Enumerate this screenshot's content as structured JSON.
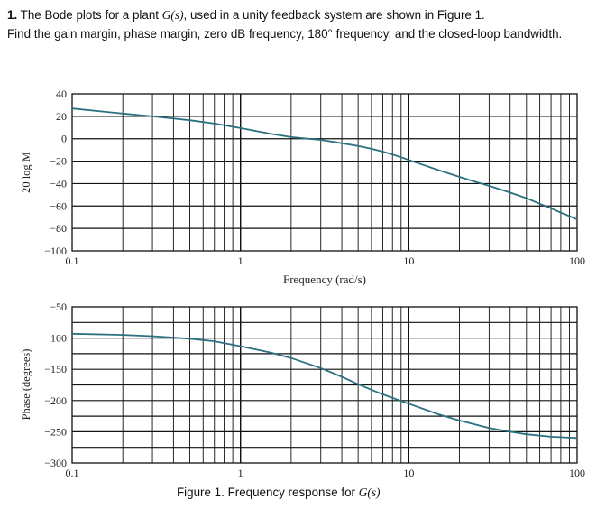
{
  "problem": {
    "number": "1.",
    "line1_before": "The Bode plots for a plant ",
    "plant_symbol": "G",
    "plant_arg": "(s)",
    "line1_after": ", used in a unity feedback system are shown in Figure 1.",
    "line2": "Find the gain margin, phase margin, zero dB frequency, 180° frequency, and the closed-loop bandwidth."
  },
  "caption": {
    "prefix": "Figure 1. Frequency response for ",
    "symbol": "G",
    "arg": "(s)"
  },
  "chart_data": [
    {
      "type": "line",
      "xscale": "log",
      "xlim": [
        0.1,
        100
      ],
      "ylim": [
        -100,
        40
      ],
      "ylabel": "20 log M",
      "xlabel": "Frequency (rad/s)",
      "x_tick_labels": [
        "0.1",
        "1",
        "10",
        "100"
      ],
      "y_tick_labels": [
        "40",
        "20",
        "0",
        "−20",
        "−40",
        "−60",
        "−80",
        "−100"
      ],
      "y_ticks": [
        40,
        20,
        0,
        -20,
        -40,
        -60,
        -80,
        -100
      ],
      "grid": true,
      "series": [
        {
          "color": "#2a7080",
          "x": [
            0.1,
            0.2,
            0.3,
            0.5,
            0.7,
            1,
            1.5,
            2,
            2.5,
            3,
            4,
            5,
            6,
            7,
            8,
            9,
            10,
            12,
            15,
            20,
            25,
            30,
            40,
            50,
            60,
            70,
            80,
            90,
            100
          ],
          "y": [
            27,
            22.5,
            20,
            16.5,
            13.5,
            9.5,
            4.5,
            1.5,
            0,
            -1,
            -4,
            -6.5,
            -9,
            -11.5,
            -14,
            -16.5,
            -19,
            -23,
            -28,
            -34,
            -38.5,
            -42,
            -48,
            -53,
            -58,
            -62,
            -66,
            -69,
            -72
          ]
        }
      ]
    },
    {
      "type": "line",
      "xscale": "log",
      "xlim": [
        0.1,
        100
      ],
      "ylim": [
        -300,
        -50
      ],
      "ylabel": "Phase (degrees)",
      "x_tick_labels": [
        "0.1",
        "1",
        "10",
        "100"
      ],
      "y_tick_labels": [
        "−50",
        "−100",
        "−150",
        "−200",
        "−250",
        "−300"
      ],
      "y_ticks": [
        -50,
        -100,
        -150,
        -200,
        -250,
        -300
      ],
      "grid": true,
      "series": [
        {
          "color": "#2a7080",
          "x": [
            0.1,
            0.2,
            0.3,
            0.5,
            0.7,
            1,
            1.5,
            2,
            3,
            4,
            5,
            7,
            10,
            15,
            20,
            30,
            40,
            50,
            70,
            100
          ],
          "y": [
            -93,
            -95,
            -97,
            -101,
            -105,
            -113,
            -123,
            -132,
            -148,
            -162,
            -174,
            -190,
            -205,
            -222,
            -232,
            -244,
            -250,
            -254,
            -258,
            -260
          ]
        }
      ]
    }
  ]
}
